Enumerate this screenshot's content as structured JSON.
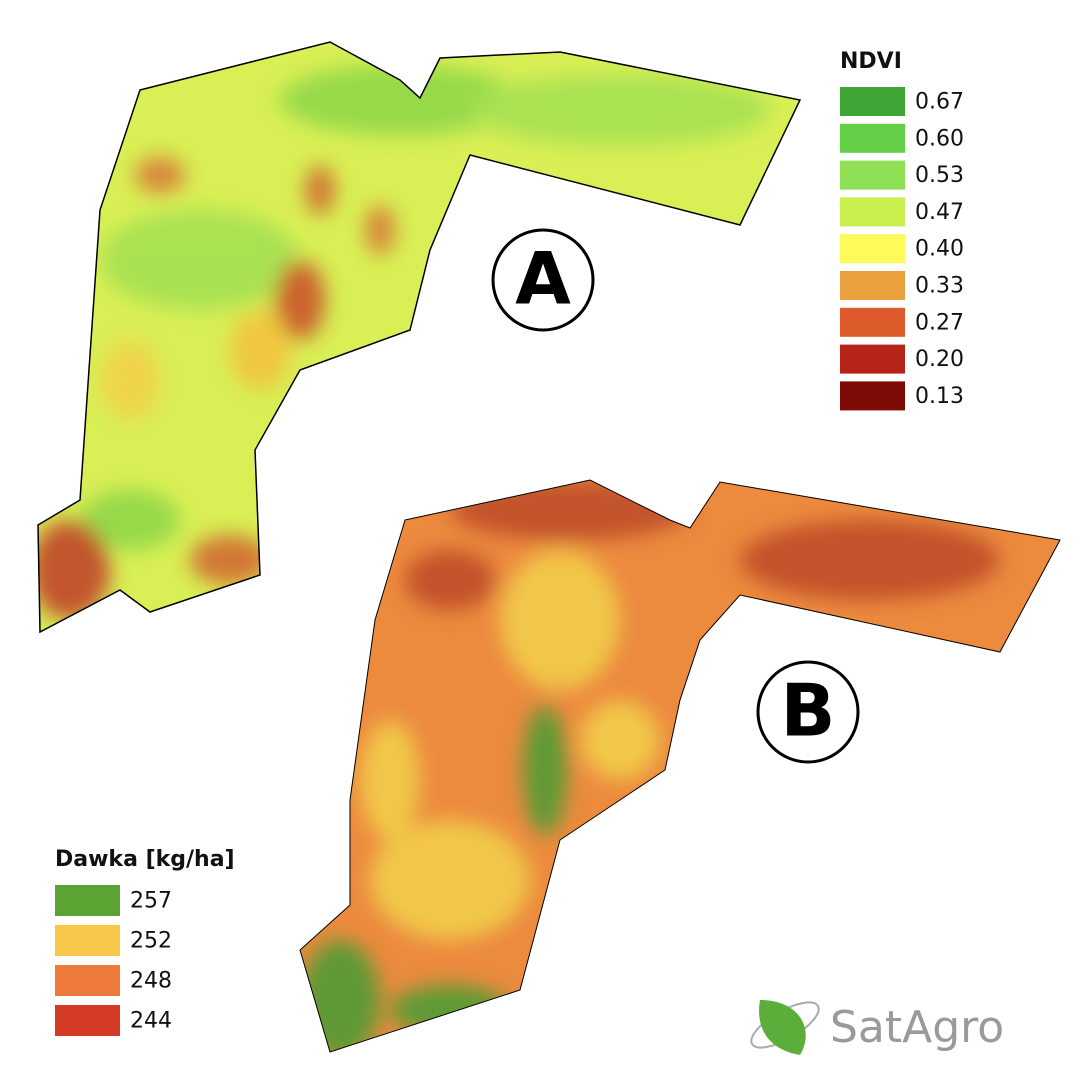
{
  "maps": {
    "a": {
      "label": "A"
    },
    "b": {
      "label": "B"
    }
  },
  "ndvi_legend": {
    "title": "NDVI",
    "items": [
      {
        "label": "0.67",
        "color": "#3fa535"
      },
      {
        "label": "0.60",
        "color": "#63cf48"
      },
      {
        "label": "0.53",
        "color": "#8fe055"
      },
      {
        "label": "0.47",
        "color": "#c8ef4e"
      },
      {
        "label": "0.40",
        "color": "#fcfb5a"
      },
      {
        "label": "0.33",
        "color": "#eba23e"
      },
      {
        "label": "0.27",
        "color": "#dd5a2a"
      },
      {
        "label": "0.20",
        "color": "#b52319"
      },
      {
        "label": "0.13",
        "color": "#7d0a05"
      }
    ]
  },
  "dose_legend": {
    "title": "Dawka [kg/ha]",
    "items": [
      {
        "label": "257",
        "color": "#5ba332"
      },
      {
        "label": "252",
        "color": "#f6c94a"
      },
      {
        "label": "248",
        "color": "#ee7a3a"
      },
      {
        "label": "244",
        "color": "#d43b25"
      }
    ]
  },
  "logo": {
    "text": "SatAgro"
  }
}
